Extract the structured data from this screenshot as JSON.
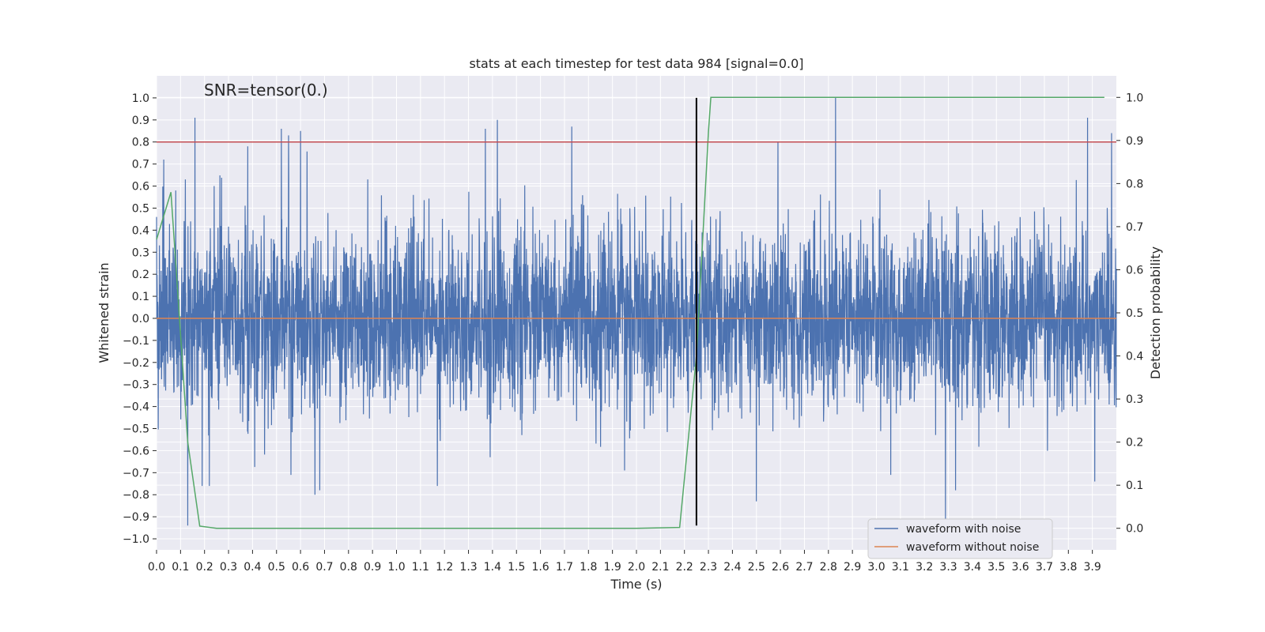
{
  "chart_data": {
    "type": "line",
    "title": "stats at each timestep for test data 984 [signal=0.0]",
    "annotation": "SNR=tensor(0.)",
    "xlabel": "Time (s)",
    "ylabel": "Whitened strain",
    "ylabel_right": "Detection probability",
    "xlim": [
      0,
      4.0
    ],
    "ylim": [
      -1.05,
      1.1
    ],
    "ylim_right": [
      -0.05,
      1.05
    ],
    "x_ticks": [
      "0.0",
      "0.1",
      "0.2",
      "0.3",
      "0.4",
      "0.5",
      "0.6",
      "0.7",
      "0.8",
      "0.9",
      "1.0",
      "1.1",
      "1.2",
      "1.3",
      "1.4",
      "1.5",
      "1.6",
      "1.7",
      "1.8",
      "1.9",
      "2.0",
      "2.1",
      "2.2",
      "2.3",
      "2.4",
      "2.5",
      "2.6",
      "2.7",
      "2.8",
      "2.9",
      "3.0",
      "3.1",
      "3.2",
      "3.3",
      "3.4",
      "3.5",
      "3.6",
      "3.7",
      "3.8",
      "3.9"
    ],
    "y_ticks": [
      "1.0",
      "0.9",
      "0.8",
      "0.7",
      "0.6",
      "0.5",
      "0.4",
      "0.3",
      "0.2",
      "0.1",
      "0.0",
      "-0.1",
      "-0.2",
      "-0.3",
      "-0.4",
      "-0.5",
      "-0.6",
      "-0.7",
      "-0.8",
      "-0.9",
      "-1.0"
    ],
    "y_ticks_right": [
      "1.0",
      "0.9",
      "0.8",
      "0.7",
      "0.6",
      "0.5",
      "0.4",
      "0.3",
      "0.2",
      "0.1",
      "0.0"
    ],
    "grid": true,
    "legend_position": "lower-right",
    "series": [
      {
        "name": "waveform with noise",
        "color": "#4c72b0",
        "axis": "left",
        "description_stats": {
          "n_samples": 4000,
          "approx_std": 0.2
        },
        "peaks": [
          [
            0.0,
            0.46
          ],
          [
            0.03,
            0.72
          ],
          [
            0.08,
            0.58
          ],
          [
            0.12,
            0.63
          ],
          [
            0.16,
            0.91
          ],
          [
            0.24,
            0.6
          ],
          [
            0.38,
            0.78
          ],
          [
            0.52,
            0.86
          ],
          [
            0.55,
            0.83
          ],
          [
            0.6,
            0.85
          ],
          [
            0.88,
            0.63
          ],
          [
            1.07,
            0.56
          ],
          [
            1.17,
            0.55
          ],
          [
            1.37,
            0.86
          ],
          [
            1.42,
            0.9
          ],
          [
            1.73,
            0.87
          ],
          [
            2.59,
            0.8
          ],
          [
            2.83,
            1.0
          ],
          [
            3.88,
            0.91
          ],
          [
            3.98,
            0.84
          ]
        ],
        "troughs": [
          [
            0.13,
            -0.94
          ],
          [
            0.19,
            -0.76
          ],
          [
            0.22,
            -0.76
          ],
          [
            0.56,
            -0.71
          ],
          [
            0.66,
            -0.8
          ],
          [
            0.68,
            -0.78
          ],
          [
            1.17,
            -0.76
          ],
          [
            1.39,
            -0.63
          ],
          [
            1.95,
            -0.69
          ],
          [
            2.5,
            -0.83
          ],
          [
            3.06,
            -0.71
          ],
          [
            3.33,
            -0.78
          ],
          [
            3.91,
            -0.74
          ]
        ]
      },
      {
        "name": "waveform without noise",
        "color": "#dd8452",
        "axis": "left",
        "x": [
          0.0,
          4.0
        ],
        "y": [
          0.0,
          0.0
        ]
      },
      {
        "name": "detection probability",
        "color": "#55a868",
        "axis": "right",
        "x": [
          0.0,
          0.06,
          0.1,
          0.13,
          0.18,
          0.25,
          1.0,
          2.0,
          2.18,
          2.25,
          2.3,
          2.31,
          3.0,
          3.95
        ],
        "y": [
          0.67,
          0.78,
          0.45,
          0.2,
          0.005,
          0.0,
          0.0,
          0.0,
          0.002,
          0.4,
          0.92,
          1.0,
          1.0,
          1.0
        ]
      }
    ],
    "reference_lines": [
      {
        "orientation": "horizontal",
        "axis": "left",
        "value": 0.8,
        "color": "#c44e52"
      },
      {
        "orientation": "vertical",
        "value": 2.25,
        "color": "#000000",
        "y_range": [
          -0.94,
          1.0
        ]
      }
    ]
  }
}
